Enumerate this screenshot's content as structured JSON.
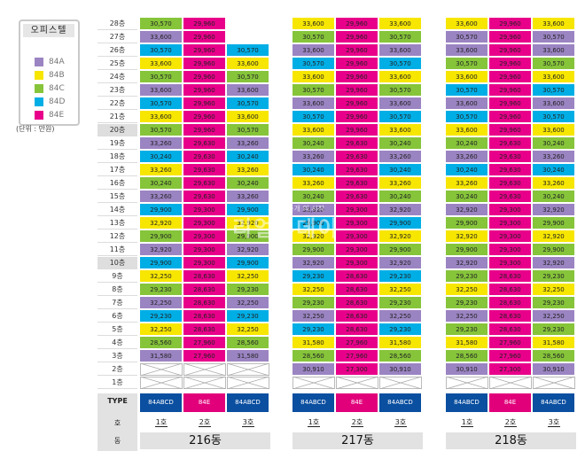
{
  "legend": {
    "title": "오피스텔",
    "items": [
      {
        "label": "84A",
        "color": "#9b84c2"
      },
      {
        "label": "84B",
        "color": "#f7e600"
      },
      {
        "label": "84C",
        "color": "#86c43a"
      },
      {
        "label": "84D",
        "color": "#00aee6"
      },
      {
        "label": "84E",
        "color": "#e8008a"
      }
    ],
    "unit": "(단위 : 만원)"
  },
  "colors": {
    "A": "#9b84c2",
    "B": "#f7e600",
    "C": "#86c43a",
    "D": "#00aee6",
    "E": "#e8008a",
    "blank": "#ffffff"
  },
  "floors": [
    "28층",
    "27층",
    "26층",
    "25층",
    "24층",
    "23층",
    "22층",
    "21층",
    "20층",
    "19층",
    "18층",
    "17층",
    "16층",
    "15층",
    "14층",
    "13층",
    "12층",
    "11층",
    "10층",
    "9층",
    "8층",
    "7층",
    "6층",
    "5층",
    "4층",
    "3층",
    "2층",
    "1층"
  ],
  "highlight_floors": [
    "20층",
    "10층"
  ],
  "footer": {
    "type_label": "TYPE",
    "ho_label": "호",
    "dong_label": "동"
  },
  "watermark": {
    "sub": "부동산중개 의 시작",
    "main": "리얼투데이"
  },
  "buildings": [
    {
      "name": "216동",
      "types": [
        "84ABCD",
        "84E",
        "84ABCD"
      ],
      "hos": [
        "1호",
        "2호",
        "3호"
      ],
      "rows": [
        [
          [
            "C",
            "30,570"
          ],
          [
            "E",
            "29,960"
          ],
          [
            "-",
            ""
          ]
        ],
        [
          [
            "A",
            "33,600"
          ],
          [
            "E",
            "29,960"
          ],
          [
            "-",
            ""
          ]
        ],
        [
          [
            "D",
            "30,570"
          ],
          [
            "E",
            "29,960"
          ],
          [
            "D",
            "30,570"
          ]
        ],
        [
          [
            "B",
            "33,600"
          ],
          [
            "E",
            "29,960"
          ],
          [
            "B",
            "33,600"
          ]
        ],
        [
          [
            "C",
            "30,570"
          ],
          [
            "E",
            "29,960"
          ],
          [
            "C",
            "30,570"
          ]
        ],
        [
          [
            "A",
            "33,600"
          ],
          [
            "E",
            "29,960"
          ],
          [
            "A",
            "33,600"
          ]
        ],
        [
          [
            "D",
            "30,570"
          ],
          [
            "E",
            "29,960"
          ],
          [
            "D",
            "30,570"
          ]
        ],
        [
          [
            "B",
            "33,600"
          ],
          [
            "E",
            "29,960"
          ],
          [
            "B",
            "33,600"
          ]
        ],
        [
          [
            "C",
            "30,570"
          ],
          [
            "E",
            "29,960"
          ],
          [
            "C",
            "30,570"
          ]
        ],
        [
          [
            "A",
            "33,260"
          ],
          [
            "E",
            "29,630"
          ],
          [
            "A",
            "33,260"
          ]
        ],
        [
          [
            "D",
            "30,240"
          ],
          [
            "E",
            "29,630"
          ],
          [
            "D",
            "30,240"
          ]
        ],
        [
          [
            "B",
            "33,260"
          ],
          [
            "E",
            "29,630"
          ],
          [
            "B",
            "33,260"
          ]
        ],
        [
          [
            "C",
            "30,240"
          ],
          [
            "E",
            "29,630"
          ],
          [
            "C",
            "30,240"
          ]
        ],
        [
          [
            "A",
            "33,260"
          ],
          [
            "E",
            "29,630"
          ],
          [
            "A",
            "33,260"
          ]
        ],
        [
          [
            "D",
            "29,900"
          ],
          [
            "E",
            "29,300"
          ],
          [
            "D",
            "29,900"
          ]
        ],
        [
          [
            "B",
            "32,920"
          ],
          [
            "E",
            "29,300"
          ],
          [
            "B",
            "32,920"
          ]
        ],
        [
          [
            "C",
            "29,900"
          ],
          [
            "E",
            "29,300"
          ],
          [
            "C",
            "29,900"
          ]
        ],
        [
          [
            "A",
            "32,920"
          ],
          [
            "E",
            "29,300"
          ],
          [
            "A",
            "32,920"
          ]
        ],
        [
          [
            "D",
            "29,900"
          ],
          [
            "E",
            "29,300"
          ],
          [
            "D",
            "29,900"
          ]
        ],
        [
          [
            "B",
            "32,250"
          ],
          [
            "E",
            "28,630"
          ],
          [
            "B",
            "32,250"
          ]
        ],
        [
          [
            "C",
            "29,230"
          ],
          [
            "E",
            "28,630"
          ],
          [
            "C",
            "29,230"
          ]
        ],
        [
          [
            "A",
            "32,250"
          ],
          [
            "E",
            "28,630"
          ],
          [
            "A",
            "32,250"
          ]
        ],
        [
          [
            "D",
            "29,230"
          ],
          [
            "E",
            "28,630"
          ],
          [
            "D",
            "29,230"
          ]
        ],
        [
          [
            "B",
            "32,250"
          ],
          [
            "E",
            "28,630"
          ],
          [
            "B",
            "32,250"
          ]
        ],
        [
          [
            "C",
            "28,560"
          ],
          [
            "E",
            "27,960"
          ],
          [
            "C",
            "28,560"
          ]
        ],
        [
          [
            "A",
            "31,580"
          ],
          [
            "E",
            "27,960"
          ],
          [
            "A",
            "31,580"
          ]
        ],
        [
          [
            "X",
            ""
          ],
          [
            "X",
            ""
          ],
          [
            "X",
            ""
          ]
        ],
        [
          [
            "X",
            ""
          ],
          [
            "X",
            ""
          ],
          [
            "X",
            ""
          ]
        ]
      ]
    },
    {
      "name": "217동",
      "types": [
        "84ABCD",
        "84E",
        "84ABCD"
      ],
      "hos": [
        "1호",
        "2호",
        "3호"
      ],
      "rows": [
        [
          [
            "B",
            "33,600"
          ],
          [
            "E",
            "29,960"
          ],
          [
            "B",
            "33,600"
          ]
        ],
        [
          [
            "C",
            "30,570"
          ],
          [
            "E",
            "29,960"
          ],
          [
            "C",
            "30,570"
          ]
        ],
        [
          [
            "A",
            "33,600"
          ],
          [
            "E",
            "29,960"
          ],
          [
            "A",
            "33,600"
          ]
        ],
        [
          [
            "D",
            "30,570"
          ],
          [
            "E",
            "29,960"
          ],
          [
            "D",
            "30,570"
          ]
        ],
        [
          [
            "B",
            "33,600"
          ],
          [
            "E",
            "29,960"
          ],
          [
            "B",
            "33,600"
          ]
        ],
        [
          [
            "C",
            "30,570"
          ],
          [
            "E",
            "29,960"
          ],
          [
            "C",
            "30,570"
          ]
        ],
        [
          [
            "A",
            "33,600"
          ],
          [
            "E",
            "29,960"
          ],
          [
            "A",
            "33,600"
          ]
        ],
        [
          [
            "D",
            "30,570"
          ],
          [
            "E",
            "29,960"
          ],
          [
            "D",
            "30,570"
          ]
        ],
        [
          [
            "B",
            "33,600"
          ],
          [
            "E",
            "29,960"
          ],
          [
            "B",
            "33,600"
          ]
        ],
        [
          [
            "C",
            "30,240"
          ],
          [
            "E",
            "29,630"
          ],
          [
            "C",
            "30,240"
          ]
        ],
        [
          [
            "A",
            "33,260"
          ],
          [
            "E",
            "29,630"
          ],
          [
            "A",
            "33,260"
          ]
        ],
        [
          [
            "D",
            "30,240"
          ],
          [
            "E",
            "29,630"
          ],
          [
            "D",
            "30,240"
          ]
        ],
        [
          [
            "B",
            "33,260"
          ],
          [
            "E",
            "29,630"
          ],
          [
            "B",
            "33,260"
          ]
        ],
        [
          [
            "C",
            "30,240"
          ],
          [
            "E",
            "29,630"
          ],
          [
            "C",
            "30,240"
          ]
        ],
        [
          [
            "A",
            "32,920"
          ],
          [
            "E",
            "29,300"
          ],
          [
            "A",
            "32,920"
          ]
        ],
        [
          [
            "D",
            "29,900"
          ],
          [
            "E",
            "29,300"
          ],
          [
            "D",
            "29,900"
          ]
        ],
        [
          [
            "B",
            "32,920"
          ],
          [
            "E",
            "29,300"
          ],
          [
            "B",
            "32,920"
          ]
        ],
        [
          [
            "C",
            "29,900"
          ],
          [
            "E",
            "29,300"
          ],
          [
            "C",
            "29,900"
          ]
        ],
        [
          [
            "A",
            "32,920"
          ],
          [
            "E",
            "29,300"
          ],
          [
            "A",
            "32,920"
          ]
        ],
        [
          [
            "D",
            "29,230"
          ],
          [
            "E",
            "28,630"
          ],
          [
            "D",
            "29,230"
          ]
        ],
        [
          [
            "B",
            "32,250"
          ],
          [
            "E",
            "28,630"
          ],
          [
            "B",
            "32,250"
          ]
        ],
        [
          [
            "C",
            "29,230"
          ],
          [
            "E",
            "28,630"
          ],
          [
            "C",
            "29,230"
          ]
        ],
        [
          [
            "A",
            "32,250"
          ],
          [
            "E",
            "28,630"
          ],
          [
            "A",
            "32,250"
          ]
        ],
        [
          [
            "D",
            "29,230"
          ],
          [
            "E",
            "28,630"
          ],
          [
            "D",
            "29,230"
          ]
        ],
        [
          [
            "B",
            "31,580"
          ],
          [
            "E",
            "27,960"
          ],
          [
            "B",
            "31,580"
          ]
        ],
        [
          [
            "C",
            "28,560"
          ],
          [
            "E",
            "27,960"
          ],
          [
            "C",
            "28,560"
          ]
        ],
        [
          [
            "A",
            "30,910"
          ],
          [
            "E",
            "27,300"
          ],
          [
            "A",
            "30,910"
          ]
        ],
        [
          [
            "X",
            ""
          ],
          [
            "X",
            ""
          ],
          [
            "X",
            ""
          ]
        ]
      ]
    },
    {
      "name": "218동",
      "types": [
        "84ABCD",
        "84E",
        "84ABCD"
      ],
      "hos": [
        "1호",
        "2호",
        "3호"
      ],
      "rows": [
        [
          [
            "B",
            "33,600"
          ],
          [
            "E",
            "29,960"
          ],
          [
            "B",
            "33,600"
          ]
        ],
        [
          [
            "A",
            "30,570"
          ],
          [
            "E",
            "29,960"
          ],
          [
            "A",
            "30,570"
          ]
        ],
        [
          [
            "A",
            "33,600"
          ],
          [
            "E",
            "29,960"
          ],
          [
            "A",
            "33,600"
          ]
        ],
        [
          [
            "C",
            "30,570"
          ],
          [
            "E",
            "29,960"
          ],
          [
            "C",
            "30,570"
          ]
        ],
        [
          [
            "B",
            "33,600"
          ],
          [
            "E",
            "29,960"
          ],
          [
            "B",
            "33,600"
          ]
        ],
        [
          [
            "D",
            "30,570"
          ],
          [
            "E",
            "29,960"
          ],
          [
            "D",
            "30,570"
          ]
        ],
        [
          [
            "A",
            "33,600"
          ],
          [
            "E",
            "29,960"
          ],
          [
            "A",
            "33,600"
          ]
        ],
        [
          [
            "D",
            "30,570"
          ],
          [
            "E",
            "29,960"
          ],
          [
            "D",
            "30,570"
          ]
        ],
        [
          [
            "B",
            "33,600"
          ],
          [
            "E",
            "29,960"
          ],
          [
            "B",
            "33,600"
          ]
        ],
        [
          [
            "C",
            "30,240"
          ],
          [
            "E",
            "29,630"
          ],
          [
            "C",
            "30,240"
          ]
        ],
        [
          [
            "A",
            "33,260"
          ],
          [
            "E",
            "29,630"
          ],
          [
            "A",
            "33,260"
          ]
        ],
        [
          [
            "D",
            "30,240"
          ],
          [
            "E",
            "29,630"
          ],
          [
            "D",
            "30,240"
          ]
        ],
        [
          [
            "B",
            "33,260"
          ],
          [
            "E",
            "29,630"
          ],
          [
            "B",
            "33,260"
          ]
        ],
        [
          [
            "C",
            "30,240"
          ],
          [
            "E",
            "29,630"
          ],
          [
            "C",
            "30,240"
          ]
        ],
        [
          [
            "A",
            "32,920"
          ],
          [
            "E",
            "29,300"
          ],
          [
            "A",
            "32,920"
          ]
        ],
        [
          [
            "C",
            "29,900"
          ],
          [
            "E",
            "29,300"
          ],
          [
            "C",
            "29,900"
          ]
        ],
        [
          [
            "B",
            "32,920"
          ],
          [
            "E",
            "29,300"
          ],
          [
            "B",
            "32,920"
          ]
        ],
        [
          [
            "C",
            "29,900"
          ],
          [
            "E",
            "29,300"
          ],
          [
            "C",
            "29,900"
          ]
        ],
        [
          [
            "A",
            "32,920"
          ],
          [
            "E",
            "29,300"
          ],
          [
            "A",
            "32,920"
          ]
        ],
        [
          [
            "C",
            "29,230"
          ],
          [
            "E",
            "28,630"
          ],
          [
            "C",
            "29,230"
          ]
        ],
        [
          [
            "B",
            "32,250"
          ],
          [
            "E",
            "28,630"
          ],
          [
            "B",
            "32,250"
          ]
        ],
        [
          [
            "C",
            "29,230"
          ],
          [
            "E",
            "28,630"
          ],
          [
            "C",
            "29,230"
          ]
        ],
        [
          [
            "A",
            "32,250"
          ],
          [
            "E",
            "28,630"
          ],
          [
            "A",
            "32,250"
          ]
        ],
        [
          [
            "C",
            "29,230"
          ],
          [
            "E",
            "28,630"
          ],
          [
            "C",
            "29,230"
          ]
        ],
        [
          [
            "B",
            "31,580"
          ],
          [
            "E",
            "27,960"
          ],
          [
            "B",
            "31,580"
          ]
        ],
        [
          [
            "C",
            "28,560"
          ],
          [
            "E",
            "27,960"
          ],
          [
            "C",
            "28,560"
          ]
        ],
        [
          [
            "A",
            "30,910"
          ],
          [
            "E",
            "27,300"
          ],
          [
            "A",
            "30,910"
          ]
        ],
        [
          [
            "X",
            ""
          ],
          [
            "X",
            ""
          ],
          [
            "X",
            ""
          ]
        ]
      ]
    }
  ]
}
